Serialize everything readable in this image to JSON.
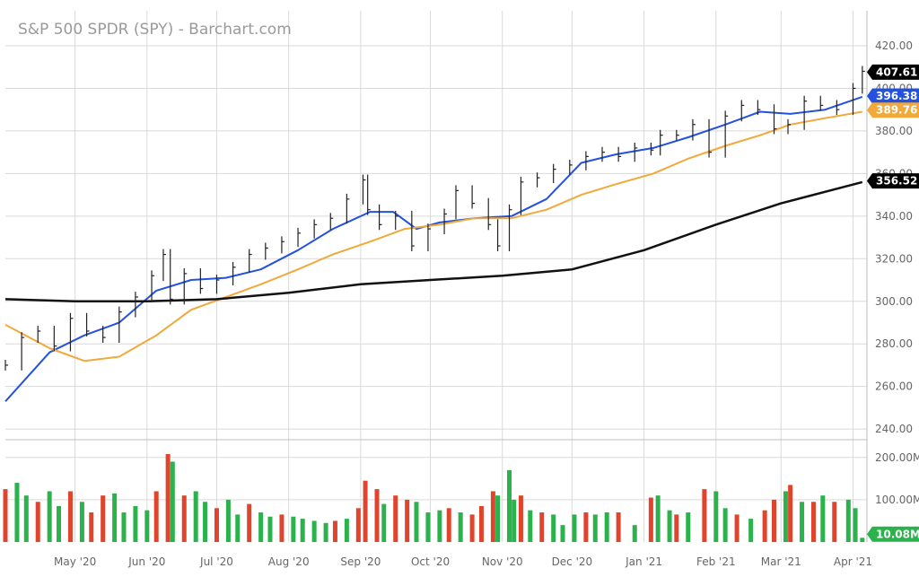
{
  "colors": {
    "price": "#222222",
    "ma20": "#2451e0",
    "ma50": "#f0a93a",
    "ma200": "#111111",
    "vol_up": "#2bb24c",
    "vol_down": "#e0442c",
    "grid": "#d9d9d9",
    "badge_price": "#000000",
    "badge_ma20": "#2451e0",
    "badge_ma50": "#f0a93a",
    "badge_ma200": "#000000",
    "badge_vol": "#2bb24c"
  },
  "chart_data": {
    "type": "line",
    "title": "S&P 500 SPDR (SPY) - Barchart.com",
    "grid": true,
    "price_axis": {
      "ylim": [
        235,
        428
      ],
      "ticks": [
        420,
        400,
        380,
        360,
        340,
        320,
        300,
        280,
        260,
        240
      ],
      "tick_labels": [
        "420.00",
        "400.00",
        "380.00",
        "360.00",
        "340.00",
        "320.00",
        "300.00",
        "280.00",
        "260.00",
        "240.00"
      ]
    },
    "volume_axis": {
      "ylim": [
        0,
        225
      ],
      "ticks": [
        200,
        100
      ],
      "tick_labels": [
        "200.00M",
        "100.00M"
      ],
      "unit": "M"
    },
    "x_range": [
      "2020-04-01",
      "2021-04-07"
    ],
    "x_ticks": [
      {
        "date": "2020-05-01",
        "label": "May '20"
      },
      {
        "date": "2020-06-01",
        "label": "Jun '20"
      },
      {
        "date": "2020-07-01",
        "label": "Jul '20"
      },
      {
        "date": "2020-08-01",
        "label": "Aug '20"
      },
      {
        "date": "2020-09-01",
        "label": "Sep '20"
      },
      {
        "date": "2020-10-01",
        "label": "Oct '20"
      },
      {
        "date": "2020-11-01",
        "label": "Nov '20"
      },
      {
        "date": "2020-12-01",
        "label": "Dec '20"
      },
      {
        "date": "2021-01-01",
        "label": "Jan '21"
      },
      {
        "date": "2021-02-01",
        "label": "Feb '21"
      },
      {
        "date": "2021-03-01",
        "label": "Mar '21"
      },
      {
        "date": "2021-04-01",
        "label": "Apr '21"
      }
    ],
    "price_series": {
      "x": [
        "2020-04-01",
        "2020-04-08",
        "2020-04-15",
        "2020-04-22",
        "2020-04-29",
        "2020-05-06",
        "2020-05-13",
        "2020-05-20",
        "2020-05-27",
        "2020-06-03",
        "2020-06-08",
        "2020-06-11",
        "2020-06-17",
        "2020-06-24",
        "2020-07-01",
        "2020-07-08",
        "2020-07-15",
        "2020-07-22",
        "2020-07-29",
        "2020-08-05",
        "2020-08-12",
        "2020-08-19",
        "2020-08-26",
        "2020-09-02",
        "2020-09-04",
        "2020-09-09",
        "2020-09-16",
        "2020-09-23",
        "2020-09-30",
        "2020-10-07",
        "2020-10-12",
        "2020-10-19",
        "2020-10-26",
        "2020-10-30",
        "2020-11-04",
        "2020-11-09",
        "2020-11-16",
        "2020-11-23",
        "2020-11-30",
        "2020-12-07",
        "2020-12-14",
        "2020-12-21",
        "2020-12-28",
        "2021-01-04",
        "2021-01-08",
        "2021-01-15",
        "2021-01-22",
        "2021-01-29",
        "2021-02-05",
        "2021-02-12",
        "2021-02-19",
        "2021-02-26",
        "2021-03-04",
        "2021-03-11",
        "2021-03-18",
        "2021-03-25",
        "2021-04-01",
        "2021-04-05"
      ],
      "y": [
        270,
        283,
        286,
        279,
        292,
        286,
        283,
        295,
        302,
        312,
        322,
        301,
        313,
        306,
        310,
        316,
        322,
        325,
        328,
        332,
        336,
        339,
        348,
        357,
        343,
        336,
        340,
        326,
        334,
        341,
        352,
        346,
        336,
        326,
        343,
        356,
        358,
        362,
        364,
        368,
        370,
        368,
        372,
        371,
        378,
        378,
        383,
        370,
        387,
        392,
        390,
        381,
        383,
        394,
        392,
        390,
        400,
        408
      ]
    },
    "series": [
      {
        "name": "",
        "color_key": "ma20",
        "x": [
          "2020-04-01",
          "2020-04-20",
          "2020-05-05",
          "2020-05-20",
          "2020-06-05",
          "2020-06-20",
          "2020-07-05",
          "2020-07-20",
          "2020-08-05",
          "2020-08-20",
          "2020-09-05",
          "2020-09-15",
          "2020-09-25",
          "2020-10-05",
          "2020-10-20",
          "2020-11-05",
          "2020-11-20",
          "2020-12-05",
          "2020-12-20",
          "2021-01-05",
          "2021-01-20",
          "2021-02-05",
          "2021-02-20",
          "2021-03-05",
          "2021-03-20",
          "2021-04-05"
        ],
        "y": [
          253,
          276,
          284,
          290,
          305,
          310,
          311,
          315,
          324,
          334,
          342,
          342,
          334,
          337,
          339,
          340,
          348,
          365,
          369,
          372,
          377,
          383,
          389,
          388,
          390,
          396
        ]
      },
      {
        "name": "",
        "color_key": "ma50",
        "x": [
          "2020-04-01",
          "2020-04-20",
          "2020-05-05",
          "2020-05-20",
          "2020-06-05",
          "2020-06-20",
          "2020-07-05",
          "2020-07-20",
          "2020-08-05",
          "2020-08-20",
          "2020-09-05",
          "2020-09-20",
          "2020-10-05",
          "2020-10-20",
          "2020-11-05",
          "2020-11-20",
          "2020-12-05",
          "2020-12-20",
          "2021-01-05",
          "2021-01-20",
          "2021-02-05",
          "2021-02-20",
          "2021-03-05",
          "2021-03-20",
          "2021-04-05"
        ],
        "y": [
          289,
          278,
          272,
          274,
          284,
          296,
          302,
          308,
          315,
          322,
          328,
          334,
          336,
          339,
          339,
          343,
          350,
          355,
          360,
          367,
          373,
          378,
          383,
          386,
          389
        ]
      },
      {
        "name": "",
        "color_key": "ma200",
        "x": [
          "2020-04-01",
          "2020-05-01",
          "2020-06-01",
          "2020-07-01",
          "2020-08-01",
          "2020-09-01",
          "2020-10-01",
          "2020-11-01",
          "2020-12-01",
          "2021-01-01",
          "2021-02-01",
          "2021-03-01",
          "2021-04-05"
        ],
        "y": [
          301,
          300,
          300,
          301,
          304,
          308,
          310,
          312,
          315,
          324,
          336,
          346,
          356
        ]
      }
    ],
    "volume": {
      "x": [
        "2020-04-01",
        "2020-04-06",
        "2020-04-10",
        "2020-04-15",
        "2020-04-20",
        "2020-04-24",
        "2020-04-29",
        "2020-05-04",
        "2020-05-08",
        "2020-05-13",
        "2020-05-18",
        "2020-05-22",
        "2020-05-27",
        "2020-06-01",
        "2020-06-05",
        "2020-06-10",
        "2020-06-12",
        "2020-06-17",
        "2020-06-22",
        "2020-06-26",
        "2020-07-01",
        "2020-07-06",
        "2020-07-10",
        "2020-07-15",
        "2020-07-20",
        "2020-07-24",
        "2020-07-29",
        "2020-08-03",
        "2020-08-07",
        "2020-08-12",
        "2020-08-17",
        "2020-08-21",
        "2020-08-26",
        "2020-08-31",
        "2020-09-03",
        "2020-09-08",
        "2020-09-11",
        "2020-09-16",
        "2020-09-21",
        "2020-09-25",
        "2020-09-30",
        "2020-10-05",
        "2020-10-09",
        "2020-10-14",
        "2020-10-19",
        "2020-10-23",
        "2020-10-28",
        "2020-10-30",
        "2020-11-04",
        "2020-11-06",
        "2020-11-09",
        "2020-11-13",
        "2020-11-18",
        "2020-11-23",
        "2020-11-27",
        "2020-12-02",
        "2020-12-07",
        "2020-12-11",
        "2020-12-16",
        "2020-12-21",
        "2020-12-28",
        "2021-01-04",
        "2021-01-07",
        "2021-01-12",
        "2021-01-15",
        "2021-01-20",
        "2021-01-27",
        "2021-02-01",
        "2021-02-05",
        "2021-02-10",
        "2021-02-16",
        "2021-02-22",
        "2021-02-26",
        "2021-03-03",
        "2021-03-05",
        "2021-03-10",
        "2021-03-15",
        "2021-03-19",
        "2021-03-24",
        "2021-03-30",
        "2021-04-02",
        "2021-04-05"
      ],
      "v": [
        125,
        140,
        110,
        95,
        120,
        85,
        120,
        95,
        70,
        110,
        115,
        70,
        85,
        75,
        120,
        208,
        190,
        110,
        120,
        95,
        80,
        100,
        65,
        90,
        70,
        60,
        65,
        60,
        55,
        50,
        45,
        50,
        55,
        80,
        145,
        125,
        90,
        110,
        100,
        95,
        70,
        75,
        80,
        70,
        65,
        85,
        120,
        110,
        170,
        100,
        110,
        75,
        70,
        65,
        40,
        65,
        70,
        65,
        70,
        70,
        40,
        105,
        110,
        75,
        65,
        70,
        125,
        120,
        80,
        65,
        55,
        75,
        100,
        120,
        135,
        95,
        95,
        110,
        95,
        100,
        80,
        10
      ],
      "up": [
        false,
        true,
        true,
        false,
        true,
        true,
        false,
        true,
        false,
        false,
        true,
        true,
        true,
        true,
        false,
        false,
        true,
        false,
        true,
        true,
        false,
        true,
        true,
        false,
        true,
        true,
        false,
        true,
        true,
        true,
        true,
        false,
        true,
        false,
        false,
        false,
        true,
        false,
        false,
        true,
        true,
        true,
        false,
        true,
        false,
        false,
        false,
        true,
        true,
        true,
        false,
        true,
        false,
        true,
        true,
        true,
        false,
        true,
        true,
        false,
        true,
        false,
        true,
        true,
        false,
        true,
        false,
        true,
        true,
        false,
        true,
        false,
        false,
        true,
        false,
        true,
        false,
        true,
        false,
        true,
        true,
        true
      ]
    },
    "badges": {
      "last_price": "407.61",
      "ma20": "396.38",
      "ma50": "389.76",
      "ma200": "356.52",
      "volume": "10.08M"
    }
  }
}
